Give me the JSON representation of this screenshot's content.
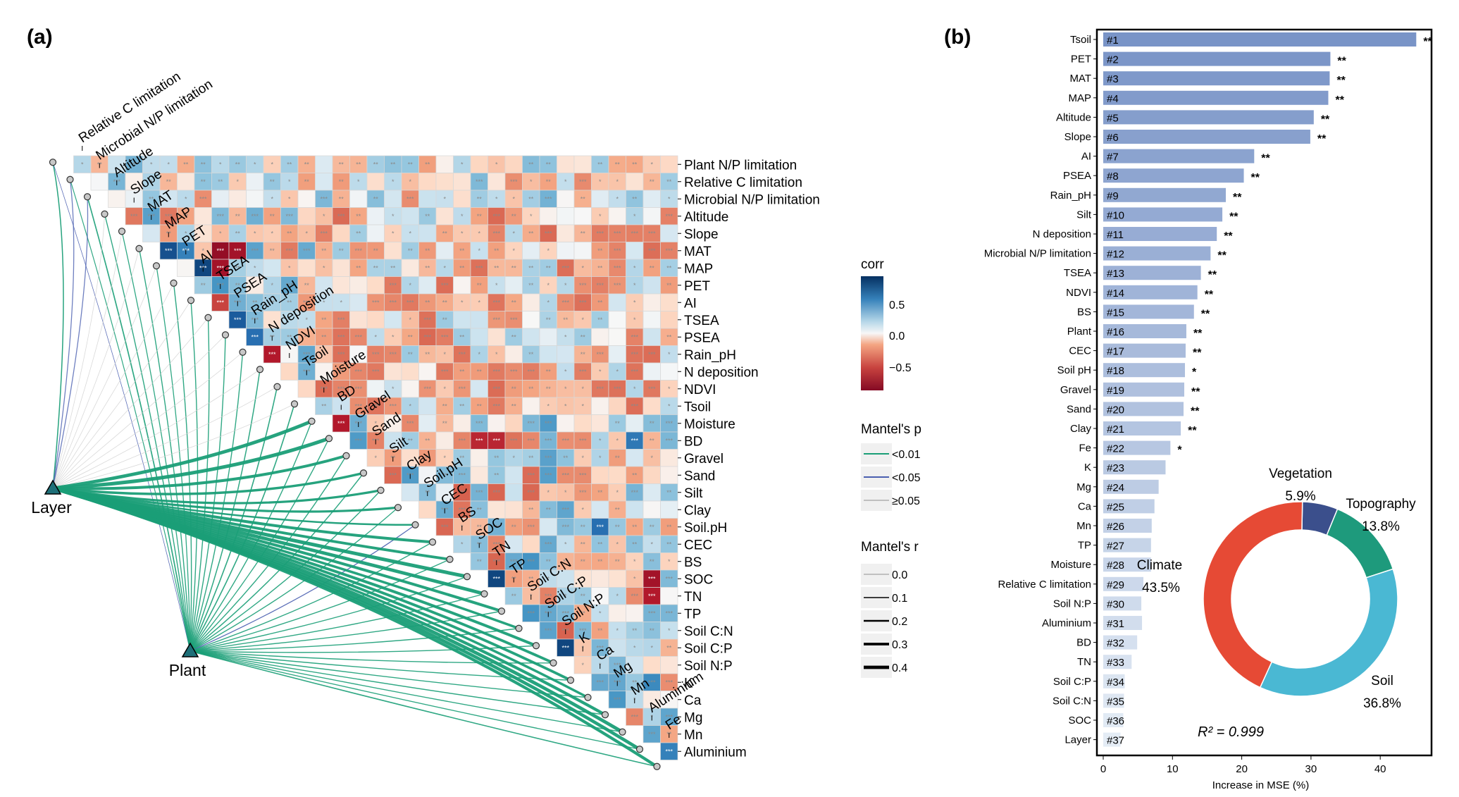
{
  "panel_a": {
    "label": "(a)"
  },
  "panel_b": {
    "label": "(b)"
  },
  "chart_data": [
    {
      "type": "heatmap",
      "variables": [
        "Plant N/P limitation",
        "Relative C limitation",
        "Microbial N/P limitation",
        "Altitude",
        "Slope",
        "MAT",
        "MAP",
        "PET",
        "AI",
        "TSEA",
        "PSEA",
        "Rain_pH",
        "N deposition",
        "NDVI",
        "Tsoil",
        "Moisture",
        "BD",
        "Gravel",
        "Sand",
        "Silt",
        "Clay",
        "Soil.pH",
        "CEC",
        "BS",
        "SOC",
        "TN",
        "TP",
        "Soil C:N",
        "Soil C:P",
        "Soil N:P",
        "K",
        "Ca",
        "Mg",
        "Mn",
        "Aluminium",
        "Fe"
      ],
      "top_labels": [
        "Relative C limitation",
        "Microbial N/P limitation",
        "Altitude",
        "Slope",
        "MAT",
        "MAP",
        "PET",
        "AI",
        "TSEA",
        "PSEA",
        "Rain_pH",
        "N deposition",
        "NDVI",
        "Tsoil",
        "Moisture",
        "BD",
        "Gravel",
        "Sand",
        "Silt",
        "Clay",
        "Soil.pH",
        "CEC",
        "BS",
        "SOC",
        "TN",
        "TP",
        "Soil C:N",
        "Soil C:P",
        "Soil N:P",
        "K",
        "Ca",
        "Mg",
        "Mn",
        "Aluminium",
        "Fe"
      ],
      "legend": {
        "corr_title": "corr",
        "corr_ticks": [
          "0.5",
          "0.0",
          "−0.5"
        ],
        "p_title": "Mantel's p",
        "p_items": [
          {
            "label": "<0.01",
            "color": "#1a9e77"
          },
          {
            "label": "<0.05",
            "color": "#4a5fb0"
          },
          {
            "label": "≥0.05",
            "color": "#bfbfbf"
          }
        ],
        "r_title": "Mantel's r",
        "r_items": [
          "0.0",
          "0.1",
          "0.2",
          "0.3",
          "0.4"
        ]
      },
      "selected_corr": [
        {
          "row": "MAT",
          "col": "MAP",
          "value": 0.85
        },
        {
          "row": "MAT",
          "col": "PET",
          "value": 0.6
        },
        {
          "row": "MAT",
          "col": "TSEA",
          "value": -0.85
        },
        {
          "row": "MAT",
          "col": "PSEA",
          "value": -0.8
        },
        {
          "row": "MAP",
          "col": "AI",
          "value": 0.9
        },
        {
          "row": "MAP",
          "col": "TSEA",
          "value": -0.8
        },
        {
          "row": "AI",
          "col": "TSEA",
          "value": -0.6
        },
        {
          "row": "TSEA",
          "col": "PSEA",
          "value": 0.8
        },
        {
          "row": "PSEA",
          "col": "Rain_pH",
          "value": 0.7
        },
        {
          "row": "Rain_pH",
          "col": "N deposition",
          "value": -0.75
        },
        {
          "row": "Moisture",
          "col": "BD",
          "value": -0.75
        },
        {
          "row": "BD",
          "col": "SOC",
          "value": -0.7
        },
        {
          "row": "BD",
          "col": "TN",
          "value": -0.7
        },
        {
          "row": "BD",
          "col": "Mn",
          "value": 0.65
        },
        {
          "row": "Soil.pH",
          "col": "Ca",
          "value": 0.7
        },
        {
          "row": "SOC",
          "col": "TN",
          "value": 0.9
        },
        {
          "row": "SOC",
          "col": "Aluminium",
          "value": -0.8
        },
        {
          "row": "TN",
          "col": "Aluminium",
          "value": -0.75
        },
        {
          "row": "Soil C:P",
          "col": "Soil N:P",
          "value": 0.9
        },
        {
          "row": "K",
          "col": "Aluminium",
          "value": 0.55
        },
        {
          "row": "Aluminium",
          "col": "Fe",
          "value": 0.6
        }
      ],
      "mantel_sources": [
        "Layer",
        "Plant"
      ]
    },
    {
      "type": "bar",
      "xlabel": "Increase in MSE (%)",
      "xlim": [
        0,
        48
      ],
      "xticks": [
        "0",
        "10",
        "20",
        "30",
        "40"
      ],
      "categories": [
        "Tsoil",
        "PET",
        "MAT",
        "MAP",
        "Altitude",
        "Slope",
        "AI",
        "PSEA",
        "Rain_pH",
        "Silt",
        "N deposition",
        "Microbial N/P limitation",
        "TSEA",
        "NDVI",
        "BS",
        "Plant",
        "CEC",
        "Soil pH",
        "Gravel",
        "Sand",
        "Clay",
        "Fe",
        "K",
        "Mg",
        "Ca",
        "Mn",
        "TP",
        "Moisture",
        "Relative C limitation",
        "Soil N:P",
        "Aluminium",
        "BD",
        "TN",
        "Soil C:P",
        "Soil C:N",
        "SOC",
        "Layer"
      ],
      "ranks": [
        "#1",
        "#2",
        "#3",
        "#4",
        "#5",
        "#6",
        "#7",
        "#8",
        "#9",
        "#10",
        "#11",
        "#12",
        "#13",
        "#14",
        "#15",
        "#16",
        "#17",
        "#18",
        "#19",
        "#20",
        "#21",
        "#22",
        "#23",
        "#24",
        "#25",
        "#26",
        "#27",
        "#28",
        "#29",
        "#30",
        "#31",
        "#32",
        "#33",
        "#34",
        "#35",
        "#36",
        "#37"
      ],
      "values": [
        45.2,
        32.8,
        32.7,
        32.5,
        30.4,
        29.9,
        21.8,
        20.3,
        17.7,
        17.2,
        16.4,
        15.5,
        14.1,
        13.6,
        13.1,
        12.0,
        11.9,
        11.8,
        11.7,
        11.6,
        11.2,
        9.7,
        9.0,
        8.0,
        7.4,
        7.0,
        6.9,
        6.9,
        5.8,
        5.5,
        5.6,
        4.9,
        4.1,
        3.1,
        3.0,
        2.9,
        2.5
      ],
      "significance": [
        "**",
        "**",
        "**",
        "**",
        "**",
        "**",
        "**",
        "**",
        "**",
        "**",
        "**",
        "**",
        "**",
        "**",
        "**",
        "**",
        "**",
        "*",
        "**",
        "**",
        "**",
        "*",
        "",
        "",
        "",
        "",
        "",
        "",
        "",
        "",
        "",
        "",
        "",
        "",
        "",
        "",
        ""
      ],
      "r2_text": "R² = 0.999",
      "donut": {
        "type": "pie",
        "slices": [
          {
            "label": "Vegetation",
            "percent_text": "5.9%",
            "value": 5.9,
            "color": "#3b4f8c"
          },
          {
            "label": "Topography",
            "percent_text": "13.8%",
            "value": 13.8,
            "color": "#1e9a7c"
          },
          {
            "label": "Soil",
            "percent_text": "36.8%",
            "value": 36.8,
            "color": "#4ab8d3"
          },
          {
            "label": "Climate",
            "percent_text": "43.5%",
            "value": 43.5,
            "color": "#e64a35"
          }
        ]
      }
    }
  ]
}
